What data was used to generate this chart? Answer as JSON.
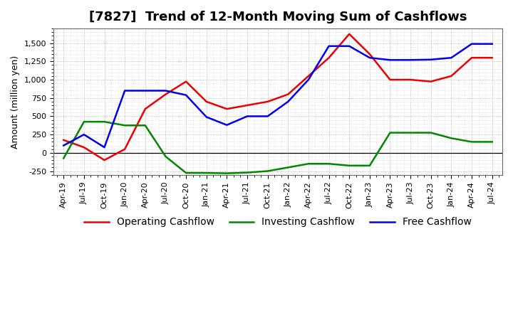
{
  "title": "[7827]  Trend of 12-Month Moving Sum of Cashflows",
  "ylabel": "Amount (million yen)",
  "ylim": [
    -300,
    1700
  ],
  "yticks": [
    -250,
    0,
    250,
    500,
    750,
    1000,
    1250,
    1500
  ],
  "background_color": "#ffffff",
  "plot_bg_color": "#ffffff",
  "labels": [
    "Apr-19",
    "Jul-19",
    "Oct-19",
    "Jan-20",
    "Apr-20",
    "Jul-20",
    "Oct-20",
    "Jan-21",
    "Apr-21",
    "Jul-21",
    "Oct-21",
    "Jan-22",
    "Apr-22",
    "Jul-22",
    "Oct-22",
    "Jan-23",
    "Apr-23",
    "Jul-23",
    "Oct-23",
    "Jan-24",
    "Apr-24",
    "Jul-24"
  ],
  "operating": [
    175,
    75,
    -100,
    50,
    600,
    800,
    975,
    700,
    600,
    650,
    700,
    800,
    1050,
    1300,
    1625,
    1350,
    1000,
    1000,
    975,
    1050,
    1300,
    1300
  ],
  "investing": [
    -75,
    425,
    425,
    375,
    375,
    -50,
    -275,
    -275,
    -280,
    -270,
    -250,
    -200,
    -150,
    -150,
    -175,
    -175,
    275,
    275,
    275,
    200,
    150,
    150
  ],
  "free": [
    100,
    250,
    75,
    850,
    850,
    850,
    790,
    490,
    380,
    500,
    500,
    700,
    1000,
    1460,
    1460,
    1300,
    1270,
    1270,
    1275,
    1300,
    1490,
    1490
  ],
  "operating_color": "#ee0000",
  "investing_color": "#008800",
  "free_color": "#0000ee",
  "line_width": 1.8,
  "title_fontsize": 13,
  "legend_fontsize": 10,
  "tick_fontsize": 8
}
